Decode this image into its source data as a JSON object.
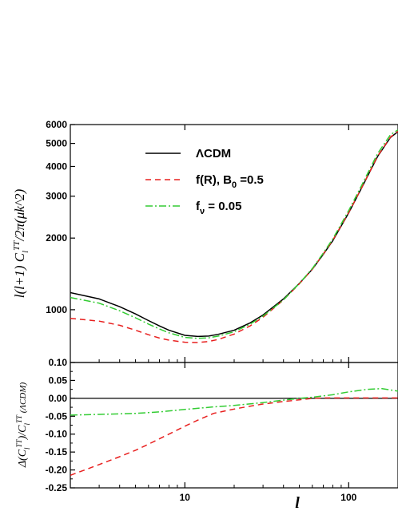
{
  "chart_data": [
    {
      "type": "line",
      "ylabel": "l(l+1) C_l^TT/2π(μk^2)",
      "xscale": "log",
      "yscale": "log",
      "xlim": [
        2,
        200
      ],
      "ylim": [
        600,
        6000
      ],
      "yticks": [
        1000,
        2000,
        3000,
        4000,
        5000,
        6000
      ],
      "ytick_labels": [
        "1000",
        "2000",
        "3000",
        "4000",
        "5000",
        "6000"
      ],
      "legend_placement": "top-left",
      "series": [
        {
          "name": "ΛCDM",
          "legend_main": "ΛCDM",
          "legend_sub": "",
          "legend_tail": "",
          "color": "#000000",
          "dash": "solid",
          "x": [
            2,
            3,
            4,
            5,
            6,
            7,
            8,
            10,
            12,
            14,
            16,
            20,
            25,
            30,
            40,
            50,
            60,
            70,
            80,
            100,
            120,
            150,
            180,
            200
          ],
          "y": [
            1180,
            1110,
            1030,
            960,
            900,
            855,
            820,
            780,
            772,
            775,
            788,
            820,
            880,
            950,
            1110,
            1290,
            1480,
            1710,
            1950,
            2550,
            3250,
            4400,
            5300,
            5600
          ]
        },
        {
          "name": "f(R), B0 = 0.5",
          "legend_main": "f(R), B",
          "legend_sub": "0",
          "legend_tail": " =0.5",
          "color": "#e8201f",
          "dash": "7,5",
          "x": [
            2,
            3,
            4,
            5,
            6,
            7,
            8,
            10,
            12,
            14,
            16,
            20,
            25,
            30,
            40,
            50,
            60,
            70,
            80,
            100,
            120,
            150,
            180,
            200
          ],
          "y": [
            920,
            895,
            860,
            820,
            785,
            760,
            745,
            730,
            728,
            735,
            750,
            790,
            855,
            930,
            1100,
            1285,
            1480,
            1715,
            1960,
            2560,
            3250,
            4420,
            5320,
            5620
          ]
        },
        {
          "name": "fν = 0.05",
          "legend_main": "f",
          "legend_sub": "ν",
          "legend_tail": " = 0.05",
          "color": "#33cc33",
          "dash": "9,3,2,3",
          "x": [
            2,
            3,
            4,
            5,
            6,
            7,
            8,
            10,
            12,
            14,
            16,
            20,
            25,
            30,
            40,
            50,
            60,
            70,
            80,
            100,
            120,
            150,
            180,
            200
          ],
          "y": [
            1125,
            1065,
            990,
            925,
            870,
            830,
            800,
            765,
            758,
            762,
            775,
            808,
            870,
            940,
            1100,
            1290,
            1490,
            1730,
            1985,
            2610,
            3330,
            4530,
            5440,
            5700
          ]
        }
      ]
    },
    {
      "type": "line",
      "xlabel": "l",
      "ylabel": "Δ(C_l^TT)/C_l^TT (ΛCDM)",
      "xscale": "log",
      "xlim": [
        2,
        200
      ],
      "ylim": [
        -0.25,
        0.1
      ],
      "xticks": [
        10,
        100
      ],
      "xtick_labels": [
        "10",
        "100"
      ],
      "yticks": [
        -0.25,
        -0.2,
        -0.15,
        -0.1,
        -0.05,
        0.0,
        0.05,
        0.1
      ],
      "ytick_labels": [
        "-0.25",
        "-0.20",
        "-0.15",
        "-0.10",
        "-0.05",
        "0.00",
        "0.05",
        "0.10"
      ],
      "series": [
        {
          "name": "ΛCDM",
          "color": "#000000",
          "dash": "solid",
          "x": [
            2,
            200
          ],
          "y": [
            0,
            0
          ]
        },
        {
          "name": "f(R), B0 = 0.5",
          "color": "#e8201f",
          "dash": "7,5",
          "x": [
            2,
            3,
            4,
            5,
            6,
            8,
            10,
            12,
            15,
            20,
            25,
            30,
            40,
            50,
            60,
            70,
            80,
            100,
            150,
            200
          ],
          "y": [
            -0.215,
            -0.185,
            -0.163,
            -0.145,
            -0.128,
            -0.1,
            -0.078,
            -0.061,
            -0.042,
            -0.03,
            -0.022,
            -0.016,
            -0.009,
            -0.004,
            0.0,
            0.001,
            0.001,
            0.001,
            0.001,
            0.001
          ]
        },
        {
          "name": "fν = 0.05",
          "color": "#33cc33",
          "dash": "9,3,2,3",
          "x": [
            2,
            3,
            5,
            7,
            10,
            15,
            20,
            30,
            40,
            50,
            60,
            80,
            100,
            130,
            160,
            200
          ],
          "y": [
            -0.047,
            -0.045,
            -0.042,
            -0.038,
            -0.031,
            -0.024,
            -0.02,
            -0.012,
            -0.005,
            0.0,
            0.003,
            0.01,
            0.018,
            0.025,
            0.027,
            0.02
          ]
        }
      ]
    }
  ]
}
